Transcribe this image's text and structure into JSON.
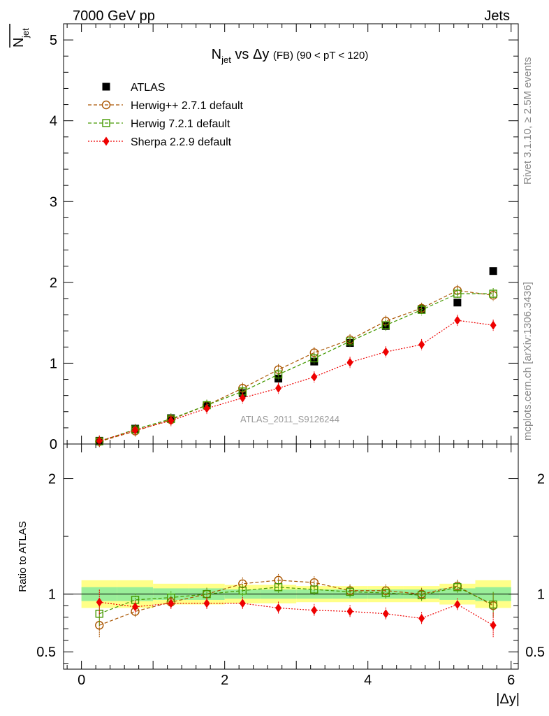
{
  "header": {
    "left": "7000 GeV pp",
    "right": "Jets"
  },
  "side_labels": {
    "rivet": "Rivet 3.1.10, ≥ 2.5M events",
    "mcplots": "mcplots.cern.ch [arXiv:1306.3436]"
  },
  "watermark": "ATLAS_2011_S9126244",
  "chart_data": [
    {
      "type": "scatter",
      "title": "N_jet vs Δy (FB) (90 < pT < 120)",
      "title_parts": {
        "n": "N",
        "sub": "jet",
        "mid": " vs Δy ",
        "small": "(FB) (90 < pT < 120)"
      },
      "ylabel_main": "N",
      "ylabel_sub": "jet",
      "xlabel": "|Δy|",
      "xlim": [
        -0.25,
        6.1
      ],
      "ylim": [
        0,
        5.2
      ],
      "yticks": [
        0,
        1,
        2,
        3,
        4,
        5
      ],
      "ytick_labels": [
        "0",
        "1",
        "2",
        "3",
        "4",
        "5"
      ],
      "x": [
        0.25,
        0.75,
        1.25,
        1.75,
        2.25,
        2.75,
        3.25,
        3.75,
        4.25,
        4.75,
        5.25,
        5.75
      ],
      "series": [
        {
          "name": "ATLAS",
          "marker": "square-filled",
          "color": "#000000",
          "line": "none",
          "values": [
            0.04,
            0.19,
            0.32,
            0.48,
            0.63,
            0.81,
            1.02,
            1.25,
            1.46,
            1.67,
            1.75,
            2.14
          ]
        },
        {
          "name": "Herwig++ 2.7.1 default",
          "marker": "circle-open",
          "color": "#aa5500",
          "line": "dashed",
          "values": [
            0.03,
            0.16,
            0.3,
            0.48,
            0.69,
            0.92,
            1.13,
            1.29,
            1.52,
            1.68,
            1.9,
            1.84
          ]
        },
        {
          "name": "Herwig 7.2.1 default",
          "marker": "square-open",
          "color": "#449900",
          "line": "dashed",
          "values": [
            0.033,
            0.18,
            0.31,
            0.48,
            0.65,
            0.86,
            1.06,
            1.27,
            1.47,
            1.66,
            1.86,
            1.86
          ]
        },
        {
          "name": "Sherpa 2.2.9 default",
          "marker": "diamond-filled",
          "color": "#ee0000",
          "line": "dotted",
          "values": [
            0.037,
            0.17,
            0.29,
            0.44,
            0.57,
            0.69,
            0.83,
            1.01,
            1.14,
            1.23,
            1.53,
            1.47
          ]
        }
      ]
    },
    {
      "type": "scatter",
      "title": "Ratio to ATLAS",
      "ylabel": "Ratio to ATLAS",
      "xlabel": "|Δy|",
      "xlim": [
        -0.25,
        6.1
      ],
      "ylim": [
        0.35,
        2.3
      ],
      "yticks": [
        0.5,
        1,
        2
      ],
      "ytick_labels": [
        "0.5",
        "1",
        "2"
      ],
      "xticks": [
        0,
        2,
        4,
        6
      ],
      "xtick_labels": [
        "0",
        "2",
        "4",
        "6"
      ],
      "x": [
        0.25,
        0.75,
        1.25,
        1.75,
        2.25,
        2.75,
        3.25,
        3.75,
        4.25,
        4.75,
        5.25,
        5.75
      ],
      "band_edges": [
        0,
        0.5,
        1.0,
        1.5,
        2.0,
        2.5,
        3.0,
        3.5,
        4.0,
        4.5,
        5.0,
        5.5,
        6.0
      ],
      "band_outer": [
        0.12,
        0.12,
        0.09,
        0.09,
        0.08,
        0.08,
        0.07,
        0.07,
        0.07,
        0.07,
        0.09,
        0.12
      ],
      "band_inner": [
        0.06,
        0.06,
        0.05,
        0.05,
        0.04,
        0.04,
        0.04,
        0.04,
        0.04,
        0.04,
        0.05,
        0.06
      ],
      "band_colors": {
        "outer": "#ffff88",
        "inner": "#99ee99"
      },
      "series": [
        {
          "name": "Herwig++ 2.7.1 default",
          "marker": "circle-open",
          "color": "#aa5500",
          "line": "dashed",
          "values": [
            0.73,
            0.85,
            0.93,
            1.0,
            1.09,
            1.12,
            1.1,
            1.03,
            1.03,
            1.0,
            1.07,
            0.9
          ]
        },
        {
          "name": "Herwig 7.2.1 default",
          "marker": "square-open",
          "color": "#449900",
          "line": "dashed",
          "values": [
            0.83,
            0.95,
            0.97,
            1.0,
            1.03,
            1.06,
            1.04,
            1.02,
            1.01,
            0.99,
            1.06,
            0.91
          ]
        },
        {
          "name": "Sherpa 2.2.9 default",
          "marker": "diamond-filled",
          "color": "#ee0000",
          "line": "dotted",
          "values": [
            0.93,
            0.89,
            0.92,
            0.92,
            0.92,
            0.88,
            0.86,
            0.85,
            0.83,
            0.79,
            0.91,
            0.73
          ]
        }
      ]
    }
  ]
}
